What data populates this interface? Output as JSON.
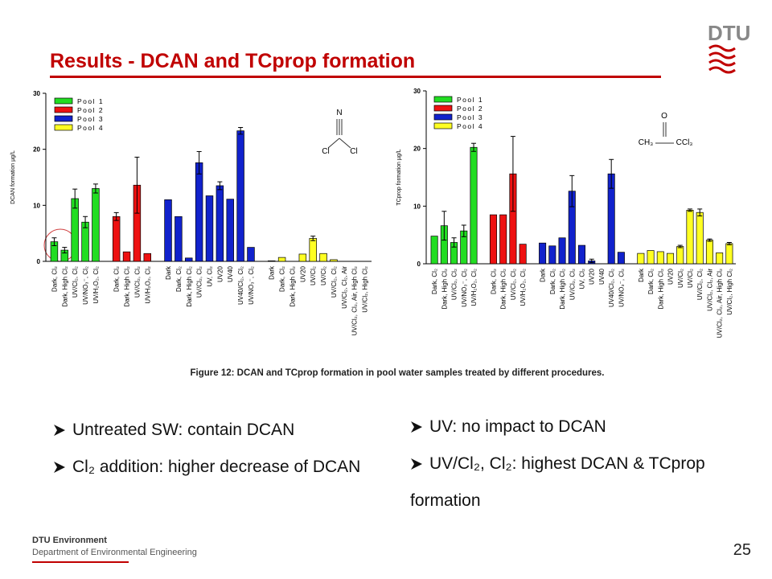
{
  "header": {
    "title": "Results - DCAN and TCprop formation",
    "logo": "DTU"
  },
  "chart_data": [
    {
      "type": "bar",
      "ylabel": "DCAN formation µg/L",
      "ylim": [
        0,
        30
      ],
      "yticks": [
        0,
        10,
        20,
        30
      ],
      "annotations": [
        "N",
        "Cl",
        "Cl"
      ],
      "series": [
        {
          "name": "Pool 1",
          "color": "#22dd22",
          "categories": [
            "Dark, Cl₂",
            "Dark, High Cl₂",
            "UV/Cl₂, Cl₂",
            "UV/NO₃⁻, Cl₂",
            "UV/H₂O₂, Cl₂"
          ],
          "values": [
            3.5,
            2.0,
            11.2,
            7.0,
            13.0
          ],
          "errors": [
            0.7,
            0.5,
            1.7,
            1.0,
            0.8
          ]
        },
        {
          "name": "Pool 2",
          "color": "#ee1111",
          "categories": [
            "Dark, Cl₂",
            "Dark, High Cl₂",
            "UV/Cl₂, Cl₂",
            "UV/H₂O₂, Cl₂"
          ],
          "values": [
            8.0,
            1.7,
            13.6,
            1.4
          ],
          "errors": [
            0.7,
            null,
            5.0,
            null
          ]
        },
        {
          "name": "Pool 3",
          "color": "#1122cc",
          "categories": [
            "Dark",
            "Dark, Cl₂",
            "Dark, High Cl₂",
            "UV/Cl₂, Cl₂",
            "UV, Cl₂",
            "UV20",
            "UV40",
            "UV40/Cl₂, Cl₂",
            "UV/NO₃⁻, Cl₂"
          ],
          "values": [
            11.0,
            8.0,
            0.6,
            17.6,
            11.7,
            13.5,
            11.1,
            23.3,
            2.5
          ],
          "errors": [
            null,
            null,
            null,
            2.0,
            null,
            0.7,
            null,
            0.6,
            null
          ]
        },
        {
          "name": "Pool 4",
          "color": "#ffff22",
          "categories": [
            "Dark",
            "Dark, Cl₂",
            "Dark, High Cl₂",
            "UV20",
            "UV/Cl₂",
            "UV/Cl₂",
            "UV/Cl₂, Cl₂",
            "UV/Cl₂, Cl₂, Air",
            "UV/Cl₂, Cl₂, Air, High Cl₂",
            "UV/Cl₂, High Cl₂"
          ],
          "values": [
            0.1,
            0.7,
            0,
            1.3,
            4.1,
            1.4,
            0.3,
            0,
            0,
            0
          ],
          "errors": [
            null,
            null,
            null,
            null,
            0.4,
            null,
            null,
            null,
            null,
            null
          ]
        }
      ]
    },
    {
      "type": "bar",
      "ylabel": "TCprop formation µg/L",
      "ylim": [
        0,
        30
      ],
      "yticks": [
        0,
        10,
        20,
        30
      ],
      "annotations": [
        "O",
        "CH₃",
        "CCl₃"
      ],
      "series": [
        {
          "name": "Pool 1",
          "color": "#22dd22",
          "categories": [
            "Dark, Cl₂",
            "Dark, High Cl₂",
            "UV/Cl₂, Cl₂",
            "UV/NO₃⁻, Cl₂",
            "UV/H₂O₂, Cl₂"
          ],
          "values": [
            4.8,
            6.6,
            3.7,
            5.7,
            20.2
          ],
          "errors": [
            null,
            2.5,
            0.8,
            1.0,
            0.7
          ]
        },
        {
          "name": "Pool 2",
          "color": "#ee1111",
          "categories": [
            "Dark, Cl₂",
            "Dark, High Cl₂",
            "UV/Cl₂, Cl₂",
            "UV/H₂O₂, Cl₂"
          ],
          "values": [
            8.5,
            8.5,
            15.6,
            3.4
          ],
          "errors": [
            null,
            null,
            6.5,
            null
          ]
        },
        {
          "name": "Pool 3",
          "color": "#1122cc",
          "categories": [
            "Dark",
            "Dark, Cl₂",
            "Dark, High Cl₂",
            "UV/Cl₂, Cl₂",
            "UV, Cl₂",
            "UV20",
            "UV40",
            "UV40/Cl₂, Cl₂",
            "UV/NO₃⁻, Cl₂"
          ],
          "values": [
            3.6,
            3.1,
            4.5,
            12.6,
            3.2,
            0.5,
            0,
            15.6,
            2.0
          ],
          "errors": [
            null,
            null,
            null,
            2.7,
            null,
            0.3,
            null,
            2.5,
            null
          ]
        },
        {
          "name": "Pool 4",
          "color": "#ffff22",
          "categories": [
            "Dark",
            "Dark, Cl₂",
            "Dark, High Cl₂",
            "UV20",
            "UV/Cl₂",
            "UV/Cl₂",
            "UV/Cl₂, Cl₂",
            "UV/Cl₂, Cl₂, Air",
            "UV/Cl₂, Cl₂, Air, High Cl₂",
            "UV/Cl₂, High Cl₂"
          ],
          "values": [
            1.8,
            2.3,
            2.1,
            1.8,
            3.0,
            9.3,
            8.9,
            4.1,
            1.9,
            3.5
          ],
          "errors": [
            null,
            null,
            null,
            null,
            0.2,
            0.2,
            0.6,
            0.2,
            null,
            0.2
          ]
        }
      ]
    }
  ],
  "caption": "Figure 12: DCAN and TCprop formation in pool water samples treated by different procedures.",
  "bullets_left": [
    "Untreated SW: contain DCAN",
    "Cl₂ addition: higher decrease of DCAN"
  ],
  "bullets_right": [
    "UV: no impact to DCAN",
    "UV/Cl₂, Cl₂: highest DCAN & TCprop formation"
  ],
  "footer": {
    "org": "DTU Environment",
    "dept": "Department of Environmental Engineering",
    "page": "25"
  }
}
